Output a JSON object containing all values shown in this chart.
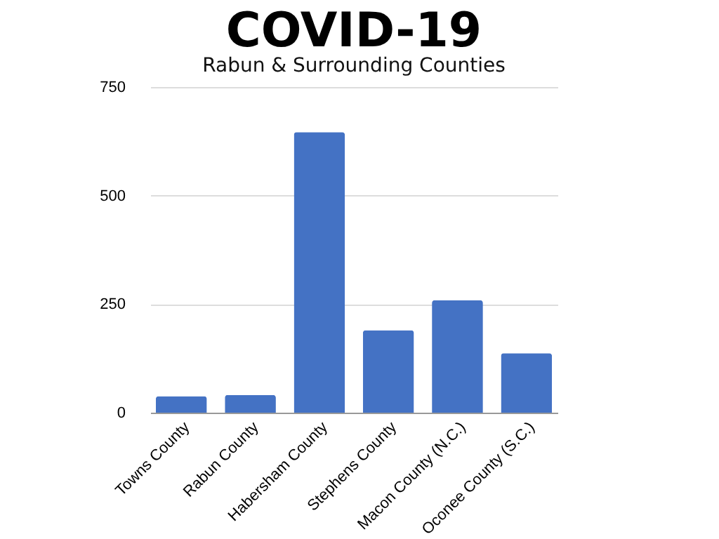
{
  "chart_data": {
    "type": "bar",
    "title": "COVID-19",
    "subtitle": "Rabun & Surrounding Counties",
    "categories": [
      "Towns County",
      "Rabun County",
      "Habersham County",
      "Stephens County",
      "Macon County (N.C.)",
      "Oconee County (S.C.)"
    ],
    "values": [
      38,
      41,
      646,
      190,
      259,
      137
    ],
    "color": "#4472c4",
    "ylim": [
      0,
      750
    ],
    "yticks": [
      0,
      250,
      500,
      750
    ],
    "grid": true
  }
}
